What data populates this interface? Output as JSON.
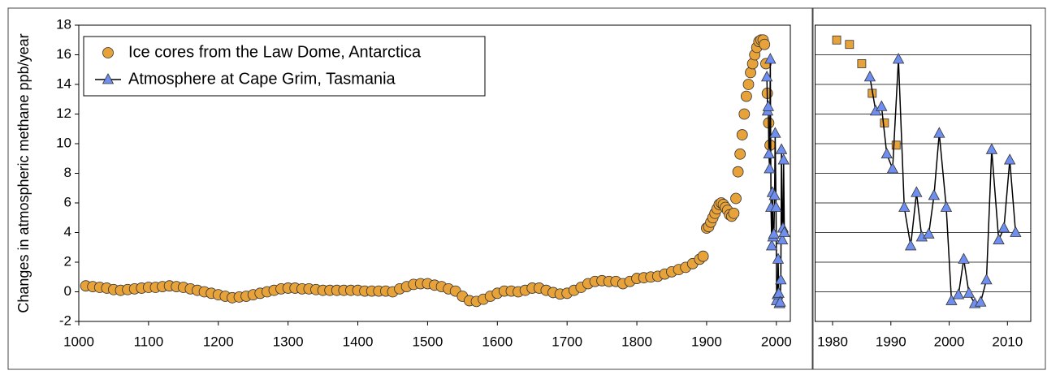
{
  "chart_data": [
    {
      "type": "scatter",
      "ylabel": "Changes in atmospheric methane ppb/year",
      "xlim": [
        1000,
        2020
      ],
      "xticks": [
        1000,
        1100,
        1200,
        1300,
        1400,
        1500,
        1600,
        1700,
        1800,
        1900,
        2000
      ],
      "ylim": [
        -2,
        18
      ],
      "yticks": [
        -2,
        0,
        2,
        4,
        6,
        8,
        10,
        12,
        14,
        16,
        18
      ],
      "grid": false,
      "legend": "upper left",
      "series": [
        {
          "name": "Ice cores from the Law Dome, Antarctica",
          "color": "#e8a23a",
          "marker": "circle",
          "line": false,
          "x": [
            1010,
            1020,
            1030,
            1040,
            1050,
            1060,
            1070,
            1080,
            1090,
            1100,
            1110,
            1120,
            1130,
            1140,
            1150,
            1160,
            1170,
            1180,
            1190,
            1200,
            1210,
            1220,
            1230,
            1240,
            1250,
            1260,
            1270,
            1280,
            1290,
            1300,
            1310,
            1320,
            1330,
            1340,
            1350,
            1360,
            1370,
            1380,
            1390,
            1400,
            1410,
            1420,
            1430,
            1440,
            1450,
            1460,
            1470,
            1480,
            1490,
            1500,
            1510,
            1520,
            1530,
            1540,
            1550,
            1560,
            1570,
            1580,
            1590,
            1600,
            1610,
            1620,
            1630,
            1640,
            1650,
            1660,
            1670,
            1680,
            1690,
            1700,
            1710,
            1720,
            1730,
            1740,
            1750,
            1760,
            1770,
            1780,
            1790,
            1800,
            1810,
            1820,
            1830,
            1840,
            1850,
            1860,
            1870,
            1880,
            1890,
            1895,
            1900,
            1903,
            1906,
            1909,
            1912,
            1915,
            1918,
            1921,
            1924,
            1927,
            1930,
            1933,
            1936,
            1939,
            1942,
            1945,
            1948,
            1951,
            1954,
            1957,
            1960,
            1963,
            1966,
            1969,
            1972,
            1975,
            1978,
            1981,
            1983,
            1985,
            1987,
            1989,
            1991
          ],
          "values": [
            0.4,
            0.35,
            0.3,
            0.25,
            0.15,
            0.1,
            0.15,
            0.2,
            0.25,
            0.3,
            0.3,
            0.35,
            0.4,
            0.35,
            0.3,
            0.2,
            0.1,
            0,
            -0.1,
            -0.2,
            -0.3,
            -0.4,
            -0.35,
            -0.3,
            -0.2,
            -0.1,
            0,
            0.1,
            0.2,
            0.25,
            0.25,
            0.2,
            0.2,
            0.15,
            0.1,
            0.1,
            0.1,
            0.1,
            0.1,
            0.1,
            0.05,
            0.05,
            0.05,
            0.05,
            0,
            0.2,
            0.35,
            0.5,
            0.55,
            0.55,
            0.45,
            0.35,
            0.2,
            0.05,
            -0.3,
            -0.6,
            -0.65,
            -0.5,
            -0.3,
            -0.1,
            0.05,
            0.05,
            0,
            0.1,
            0.25,
            0.25,
            0.1,
            -0.05,
            -0.15,
            -0.1,
            0.1,
            0.3,
            0.55,
            0.7,
            0.75,
            0.7,
            0.7,
            0.55,
            0.7,
            0.9,
            0.95,
            1.0,
            1.05,
            1.2,
            1.35,
            1.5,
            1.65,
            1.9,
            2.2,
            2.4,
            4.3,
            4.4,
            4.7,
            5.0,
            5.3,
            5.6,
            5.9,
            6.0,
            5.9,
            5.7,
            5.5,
            5.2,
            5.1,
            5.3,
            6.3,
            8.1,
            9.3,
            10.6,
            12.0,
            13.2,
            14.0,
            14.8,
            15.4,
            16.0,
            16.5,
            16.9,
            17.0,
            17.0,
            16.7,
            15.4,
            13.4,
            11.4,
            9.9
          ]
        },
        {
          "name": "Atmosphere at Cape Grim, Tasmania",
          "color": "#6f8ff0",
          "marker": "triangle",
          "line": true,
          "x": [
            1986.4,
            1987.4,
            1988.4,
            1989.3,
            1990.3,
            1991.3,
            1992.3,
            1993.4,
            1994.4,
            1995.3,
            1996.5,
            1997.4,
            1998.3,
            1999.5,
            2000.4,
            2001.6,
            2002.5,
            2003.4,
            2004.4,
            2005.4,
            2006.4,
            2007.3,
            2008.5,
            2009.4,
            2010.4,
            2011.4
          ],
          "values": [
            14.5,
            12.2,
            12.5,
            9.3,
            8.3,
            15.7,
            5.7,
            3.1,
            6.7,
            3.7,
            3.9,
            6.5,
            10.7,
            5.7,
            -0.6,
            -0.2,
            2.2,
            -0.1,
            -0.8,
            -0.7,
            0.8,
            9.6,
            3.5,
            4.3,
            8.9,
            4.0
          ]
        }
      ]
    },
    {
      "type": "scatter",
      "xlim": [
        1977,
        2014
      ],
      "xticks": [
        1980,
        1990,
        2000,
        2010
      ],
      "ylim": [
        -2,
        18
      ],
      "yticks": [
        -2,
        0,
        2,
        4,
        6,
        8,
        10,
        12,
        14,
        16,
        18
      ],
      "grid": true,
      "ytick_labels": false,
      "series": [
        {
          "color": "#e8a23a",
          "marker": "square",
          "line": false,
          "x": [
            1980.7,
            1982.9,
            1985.0,
            1986.8,
            1988.9,
            1990.9
          ],
          "values": [
            17.0,
            16.7,
            15.4,
            13.4,
            11.4,
            9.9
          ]
        },
        {
          "color": "#6f8ff0",
          "marker": "triangle",
          "line": true,
          "x": [
            1986.4,
            1987.4,
            1988.4,
            1989.3,
            1990.3,
            1991.3,
            1992.3,
            1993.4,
            1994.4,
            1995.3,
            1996.5,
            1997.4,
            1998.3,
            1999.5,
            2000.4,
            2001.6,
            2002.5,
            2003.4,
            2004.4,
            2005.4,
            2006.4,
            2007.3,
            2008.5,
            2009.4,
            2010.4,
            2011.4
          ],
          "values": [
            14.5,
            12.2,
            12.5,
            9.3,
            8.3,
            15.7,
            5.7,
            3.1,
            6.7,
            3.7,
            3.9,
            6.5,
            10.7,
            5.7,
            -0.6,
            -0.2,
            2.2,
            -0.1,
            -0.8,
            -0.7,
            0.8,
            9.6,
            3.5,
            4.3,
            8.9,
            4.0
          ]
        }
      ]
    }
  ]
}
